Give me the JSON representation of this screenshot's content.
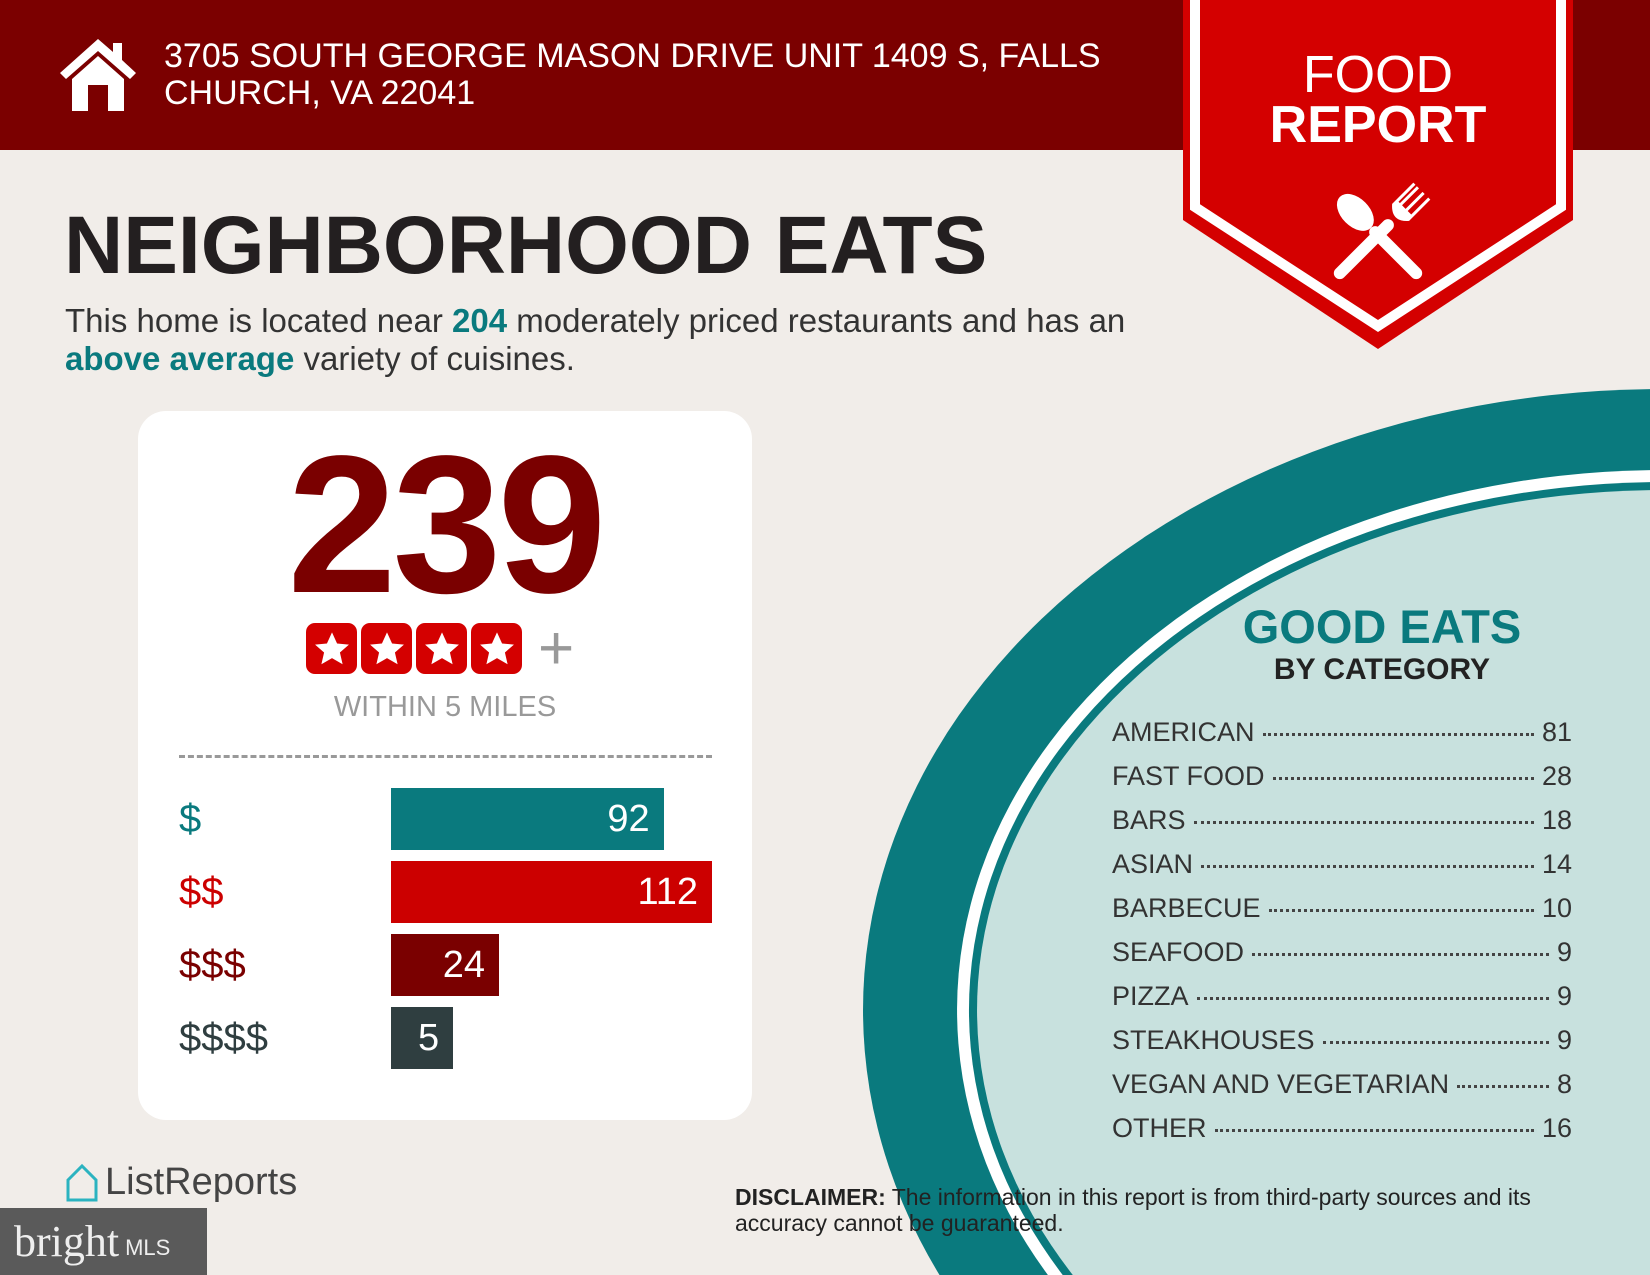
{
  "header": {
    "address": "3705 SOUTH GEORGE MASON DRIVE UNIT 1409 S, FALLS CHURCH, VA 22041",
    "icon": "house-icon"
  },
  "badge": {
    "line1": "FOOD",
    "line2": "REPORT",
    "icon": "spoon-fork-icon"
  },
  "title": "NEIGHBORHOOD EATS",
  "subtitle": {
    "p1": "This home is located near ",
    "count": "204",
    "p2": " moderately priced restaurants and has an ",
    "variety": "above average",
    "p3": " variety of cuisines."
  },
  "card": {
    "total": "239",
    "rating_stars": 4,
    "rating_plus": "+",
    "within": "WITHIN 5 MILES",
    "prices": [
      {
        "label": "$",
        "value": 92,
        "color": "#0a7a7e"
      },
      {
        "label": "$$",
        "value": 112,
        "color": "#cc0000"
      },
      {
        "label": "$$$",
        "value": 24,
        "color": "#7a0000"
      },
      {
        "label": "$$$$",
        "value": 5,
        "color": "#2f3e40"
      }
    ]
  },
  "categories": {
    "title": "GOOD EATS",
    "subtitle": "BY CATEGORY",
    "items": [
      {
        "name": "AMERICAN",
        "count": "81"
      },
      {
        "name": "FAST FOOD",
        "count": "28"
      },
      {
        "name": "BARS",
        "count": "18"
      },
      {
        "name": "ASIAN",
        "count": "14"
      },
      {
        "name": "BARBECUE",
        "count": "10"
      },
      {
        "name": "SEAFOOD",
        "count": "9"
      },
      {
        "name": "PIZZA",
        "count": "9"
      },
      {
        "name": "STEAKHOUSES",
        "count": "9"
      },
      {
        "name": "VEGAN AND VEGETARIAN",
        "count": "8"
      },
      {
        "name": "OTHER",
        "count": "16"
      }
    ]
  },
  "footer": {
    "listreports": "ListReports",
    "bright": "bright",
    "mls": "MLS",
    "disclaimer_label": "DISCLAIMER:",
    "disclaimer": " The information in this report is from third-party sources and its accuracy cannot be guaranteed."
  },
  "colors": {
    "header": "#7b0000",
    "badge": "#d40000",
    "teal": "#0a7a7e",
    "plate": "#c8e1de",
    "background": "#f1ede9"
  }
}
